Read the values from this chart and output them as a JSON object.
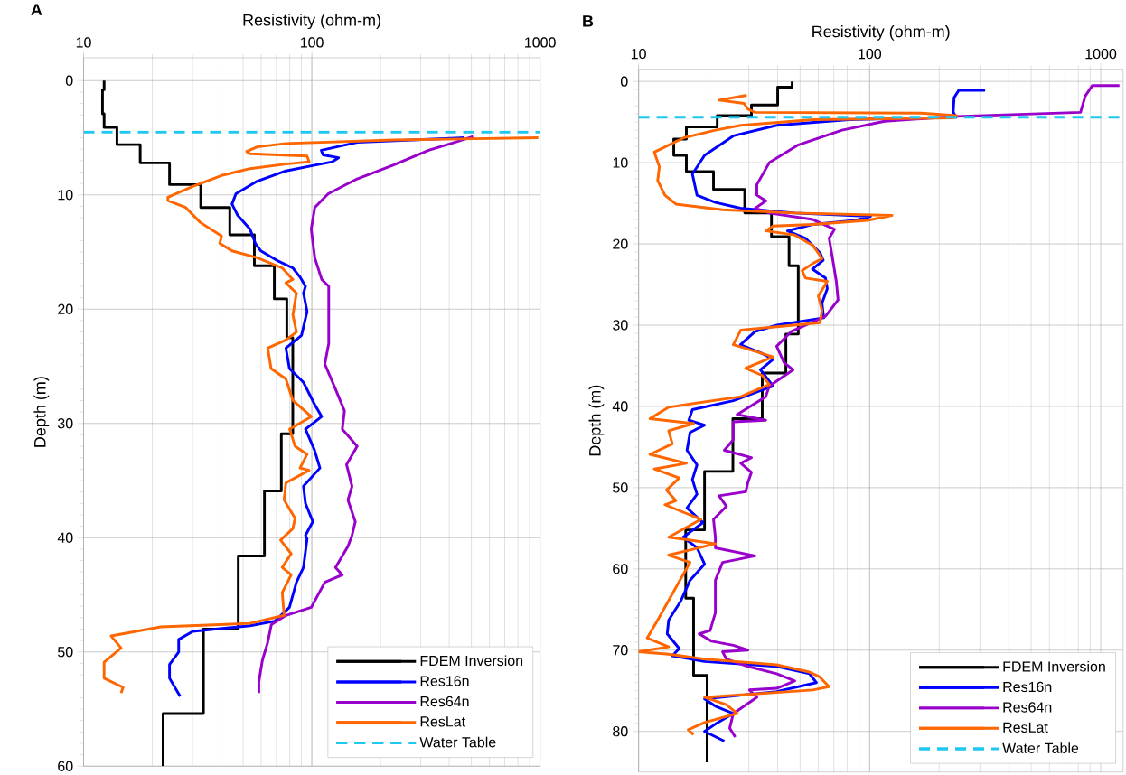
{
  "chart_data": [
    {
      "type": "line",
      "title": "A",
      "xlabel": "Resistivity (ohm-m)",
      "ylabel": "Depth (m)",
      "log": "x",
      "xlim": [
        10,
        1000
      ],
      "xticks": [
        10,
        100,
        1000
      ],
      "ylim": [
        60,
        -2
      ],
      "yticks": [
        0,
        10,
        20,
        30,
        40,
        50,
        60
      ],
      "grid": true,
      "legend": "bottom right",
      "series": [
        {
          "name": "FDEM Inversion",
          "color": "#000000",
          "x": [
            12.3,
            12.3,
            12.1,
            12.1,
            12.3,
            12.3,
            14,
            14,
            17.7,
            17.7,
            23.8,
            23.8,
            32.6,
            32.6,
            43.7,
            43.7,
            56,
            56,
            68.5,
            68.5,
            77.7,
            77.7,
            82.5,
            82.5,
            73.5,
            73.5,
            62,
            62,
            47.6,
            47.6,
            33.5,
            33.5,
            22.3,
            22.3
          ],
          "values": [
            0,
            0.8,
            0.8,
            2.9,
            2.9,
            4.1,
            4.1,
            5.6,
            5.6,
            7.2,
            7.2,
            9.1,
            9.1,
            11.1,
            11.1,
            13.5,
            13.5,
            16.2,
            16.2,
            19.1,
            19.1,
            22.5,
            22.5,
            30.9,
            30.9,
            35.9,
            35.9,
            41.6,
            41.6,
            48.0,
            48.0,
            55.4,
            55.4,
            60
          ]
        },
        {
          "name": "Res16n",
          "color": "#0000ff",
          "x": [
            466,
            158,
            110,
            112,
            131,
            123,
            103,
            77,
            57.7,
            46.5,
            44.7,
            47.2,
            53.6,
            56.6,
            59.8,
            71.4,
            82.6,
            88.8,
            93.8,
            91.9,
            95.3,
            90.1,
            77,
            79.8,
            91.9,
            102.6,
            110.5,
            93.8,
            102.6,
            108.5,
            91.9,
            93.8,
            101,
            93.8,
            95.3,
            91.9,
            85.6,
            79.8,
            68.9,
            53.6,
            30.1,
            26.1,
            26.1,
            23.8,
            23.8,
            26.5
          ],
          "values": [
            5.0,
            5.4,
            6.1,
            6.5,
            6.75,
            7.1,
            7.4,
            7.9,
            8.8,
            9.9,
            10.8,
            11.75,
            13.0,
            14.25,
            14.9,
            15.8,
            16.4,
            17.2,
            18.0,
            18.6,
            20.2,
            22.3,
            23.4,
            25.2,
            26.4,
            28.3,
            29.4,
            30.5,
            32.3,
            33.9,
            35.5,
            37.0,
            38.6,
            39.8,
            40.1,
            42.6,
            43.9,
            46.1,
            47.3,
            47.7,
            48.2,
            48.9,
            50.0,
            51.1,
            52.3,
            53.9
          ]
        },
        {
          "name": "Res64n",
          "color": "#9900cc",
          "x": [
            509,
            325,
            227,
            158,
            118,
            103,
            99.4,
            103,
            110.5,
            118.6,
            118.6,
            114,
            127,
            139,
            136,
            158,
            142,
            150,
            144,
            155,
            150,
            144,
            127,
            136,
            114,
            99.4,
            77,
            66.5,
            64,
            60.7,
            58.6,
            58.6
          ],
          "values": [
            4.9,
            6.1,
            7.4,
            8.6,
            9.9,
            11.1,
            13.0,
            15.5,
            17.4,
            18.0,
            23.0,
            24.8,
            27.0,
            28.9,
            30.5,
            32.0,
            33.6,
            35.5,
            36.7,
            38.6,
            39.8,
            40.75,
            42.6,
            43.25,
            43.9,
            46.1,
            46.8,
            47.6,
            49.2,
            50.75,
            52.6,
            53.6
          ]
        },
        {
          "name": "ResLat",
          "color": "#ff6600",
          "x": [
            982,
            227,
            77,
            57.7,
            51.8,
            53.6,
            95.3,
            97.3,
            77,
            53.6,
            40.2,
            30.1,
            23.4,
            23.4,
            28,
            32.4,
            40.2,
            39.5,
            44.7,
            57.7,
            74.2,
            82.6,
            77,
            85.6,
            82.6,
            85.6,
            77,
            64.1,
            66.3,
            77,
            82.6,
            99.4,
            80,
            84.4,
            95.3,
            88.8,
            97.3,
            77,
            75.6,
            84.4,
            82.6,
            73,
            74.2,
            81.2,
            74.2,
            81.2,
            74.2,
            75.6,
            53.6,
            21.8,
            13.2,
            14.6,
            12.3,
            12.3,
            14.9,
            14.6
          ],
          "values": [
            5.0,
            5.2,
            5.5,
            5.8,
            6.2,
            6.4,
            6.6,
            7.1,
            7.3,
            7.7,
            8.3,
            9.25,
            10.2,
            10.5,
            11.1,
            12.4,
            13.6,
            14.25,
            14.9,
            15.5,
            16.4,
            17.4,
            17.7,
            18.6,
            20.5,
            22.0,
            22.7,
            23.4,
            25.2,
            26.1,
            28.0,
            29.4,
            30.5,
            32.0,
            32.7,
            33.9,
            34.1,
            35.2,
            36.7,
            38.3,
            39.2,
            40.2,
            40.4,
            41.4,
            42.6,
            43.25,
            44.8,
            46.8,
            47.5,
            47.8,
            48.6,
            49.65,
            50.9,
            52.3,
            53.1,
            53.6
          ]
        }
      ],
      "ref_lines": [
        {
          "axis": "y",
          "value": 4.5,
          "label": "Water Table",
          "color": "#1ec8f0",
          "line_style": "dashed"
        }
      ]
    },
    {
      "type": "line",
      "title": "B",
      "xlabel": "Resistivity (ohm-m)",
      "ylabel": "Depth (m)",
      "log": "x",
      "xlim": [
        10,
        1250
      ],
      "xticks": [
        10,
        100,
        1000
      ],
      "ylim": [
        85,
        -1.5
      ],
      "yticks": [
        0,
        10,
        20,
        30,
        40,
        50,
        60,
        70,
        80
      ],
      "grid": true,
      "legend": "bottom right",
      "series": [
        {
          "name": "FDEM Inversion",
          "color": "#000000",
          "x": [
            46.2,
            46.2,
            40,
            40,
            30.8,
            30.8,
            21.9,
            21.9,
            16.1,
            16.1,
            14.2,
            14.2,
            16.1,
            16.1,
            21.1,
            21.1,
            28.8,
            28.8,
            37.6,
            37.6,
            44.8,
            44.8,
            49.1,
            49.1,
            43.4,
            43.4,
            34.3,
            34.3,
            25.6,
            25.6,
            19.3,
            19.3,
            16,
            16,
            17.3,
            17.3,
            19.8,
            19.8
          ],
          "values": [
            0,
            0.7,
            0.7,
            2.9,
            2.9,
            4.2,
            4.2,
            5.6,
            5.6,
            7.1,
            7.1,
            9.1,
            9.1,
            11.1,
            11.1,
            13.3,
            13.3,
            16.2,
            16.2,
            19.1,
            19.1,
            22.7,
            22.7,
            31.1,
            31.1,
            35.9,
            35.9,
            41.5,
            41.5,
            48.0,
            48.0,
            55.2,
            55.2,
            63.6,
            63.6,
            73.1,
            73.1,
            83.8
          ]
        },
        {
          "name": "Res16n",
          "color": "#0000ff",
          "x": [
            316,
            243,
            232,
            230,
            237,
            81.3,
            39.6,
            25.7,
            19.3,
            17.1,
            17.9,
            21.5,
            27.6,
            47.4,
            101,
            87,
            56.6,
            44.1,
            52.8,
            61,
            63,
            56.6,
            64.4,
            65.6,
            62.2,
            63.3,
            39.7,
            31.9,
            27.6,
            34.3,
            38.2,
            33.7,
            38.2,
            25.7,
            17.1,
            16.5,
            19.3,
            16.7,
            16.2,
            17.9,
            17.1,
            17.9,
            16.2,
            19,
            15.6,
            17.9,
            19.3,
            16.7,
            15.2,
            13.5,
            13.3,
            15,
            14,
            19.3,
            39.6,
            54.9,
            58.8,
            39.6,
            19.3,
            21.5,
            25.7,
            21.5,
            19.3,
            23.5
          ],
          "values": [
            1.1,
            1.1,
            2.0,
            3.8,
            4.4,
            4.7,
            5.4,
            6.7,
            9.1,
            11.4,
            14.0,
            14.9,
            15.6,
            16.2,
            16.6,
            17.1,
            17.6,
            18.4,
            19.3,
            21.1,
            22.0,
            23.1,
            24.2,
            25.5,
            27.3,
            29.1,
            30.0,
            30.8,
            32.4,
            33.5,
            34.2,
            35.5,
            37.5,
            39.3,
            40.4,
            41.7,
            42.3,
            43.2,
            45.4,
            47.2,
            49.0,
            50.8,
            52.5,
            54.3,
            56.1,
            57.4,
            59.4,
            61.4,
            64.0,
            66.3,
            68.0,
            69.8,
            70.7,
            71.4,
            72.0,
            72.9,
            74.0,
            75.1,
            76.0,
            76.9,
            77.8,
            79.1,
            80.0,
            81.2
          ]
        },
        {
          "name": "Res64n",
          "color": "#9900cc",
          "x": [
            1205,
            920,
            857,
            818,
            238,
            116,
            75.9,
            49.2,
            36.8,
            32.5,
            32.5,
            35.6,
            32,
            36.8,
            56.8,
            70.5,
            66.8,
            69.3,
            71.8,
            73,
            64.4,
            45.7,
            39.6,
            42.6,
            46.6,
            36.8,
            35.5,
            26.7,
            35.5,
            25.7,
            25.7,
            23.5,
            30.8,
            27.7,
            30.8,
            29.7,
            29.1,
            22.3,
            24,
            21.1,
            21.5,
            21.5,
            31.9,
            23.1,
            21.5,
            21.5,
            20.4,
            18.3,
            20.7,
            25.7,
            29.7,
            23.1,
            24,
            29.7,
            39.6,
            47.4,
            39.6,
            30.2,
            32.5,
            25.7,
            24.8,
            26.2
          ],
          "values": [
            0.5,
            0.5,
            1.8,
            3.8,
            4.3,
            4.9,
            6.0,
            7.8,
            10.0,
            12.7,
            14.0,
            14.7,
            15.6,
            16.2,
            17.0,
            18.2,
            19.3,
            22.0,
            24.7,
            26.9,
            28.9,
            30.8,
            32.6,
            34.6,
            35.5,
            37.5,
            38.8,
            41.0,
            41.7,
            41.9,
            44.1,
            45.4,
            46.3,
            47.0,
            48.1,
            49.4,
            50.5,
            51.0,
            52.3,
            53.9,
            56.1,
            57.4,
            58.4,
            59.2,
            61.4,
            65.4,
            67.6,
            68.0,
            68.9,
            69.4,
            70.0,
            70.2,
            71.1,
            72.0,
            72.9,
            73.8,
            74.7,
            74.9,
            75.8,
            77.8,
            79.6,
            80.7
          ]
        },
        {
          "name": "ResLat",
          "color": "#ff6600",
          "x": [
            29.4,
            22.3,
            28.6,
            29.7,
            31.9,
            167,
            238,
            230,
            56.8,
            27.7,
            21.5,
            15.8,
            11.7,
            12.3,
            12.1,
            13,
            14.5,
            23.1,
            47.4,
            125,
            97.7,
            56.8,
            38.2,
            35.6,
            47.4,
            56.8,
            62.3,
            56.8,
            51,
            52.8,
            65.6,
            60,
            62.2,
            61,
            39.6,
            27.7,
            25.7,
            28.6,
            38.2,
            29.1,
            34.3,
            36.8,
            27.7,
            13.5,
            11.2,
            17.3,
            13.5,
            14,
            11.2,
            16.1,
            11.7,
            15,
            13.2,
            14.5,
            13,
            18.6,
            13.5,
            21.5,
            13.5,
            16.7,
            14.5,
            12.1,
            10.9,
            13.5,
            10,
            13.5,
            19.3,
            39.6,
            54.9,
            60.8,
            66.7,
            56.8,
            19.3,
            24,
            26.7,
            19.3,
            16.4,
            17.3
          ],
          "values": [
            1.7,
            2.3,
            2.7,
            3.4,
            3.8,
            3.9,
            4.2,
            4.5,
            4.7,
            5.4,
            6.0,
            6.9,
            8.7,
            10.5,
            12.2,
            14.0,
            15.1,
            15.8,
            16.2,
            16.5,
            17.1,
            17.6,
            17.8,
            18.4,
            18.9,
            20.2,
            21.8,
            22.4,
            23.3,
            24.2,
            24.6,
            26.4,
            28.2,
            29.7,
            30.2,
            30.6,
            32.4,
            32.8,
            33.9,
            35.3,
            36.2,
            37.3,
            38.8,
            40.1,
            41.5,
            42.1,
            43.0,
            44.6,
            45.9,
            47.0,
            47.7,
            48.8,
            50.3,
            51.6,
            52.1,
            53.9,
            56.1,
            56.9,
            58.3,
            59.2,
            62.3,
            66.3,
            68.5,
            69.6,
            70.2,
            70.5,
            71.1,
            71.8,
            72.7,
            73.3,
            74.5,
            74.9,
            75.8,
            76.7,
            77.8,
            78.9,
            79.8,
            80.4
          ]
        }
      ],
      "ref_lines": [
        {
          "axis": "y",
          "value": 4.4,
          "label": "Water Table",
          "color": "#1ec8f0",
          "line_style": "dashed"
        }
      ]
    }
  ]
}
